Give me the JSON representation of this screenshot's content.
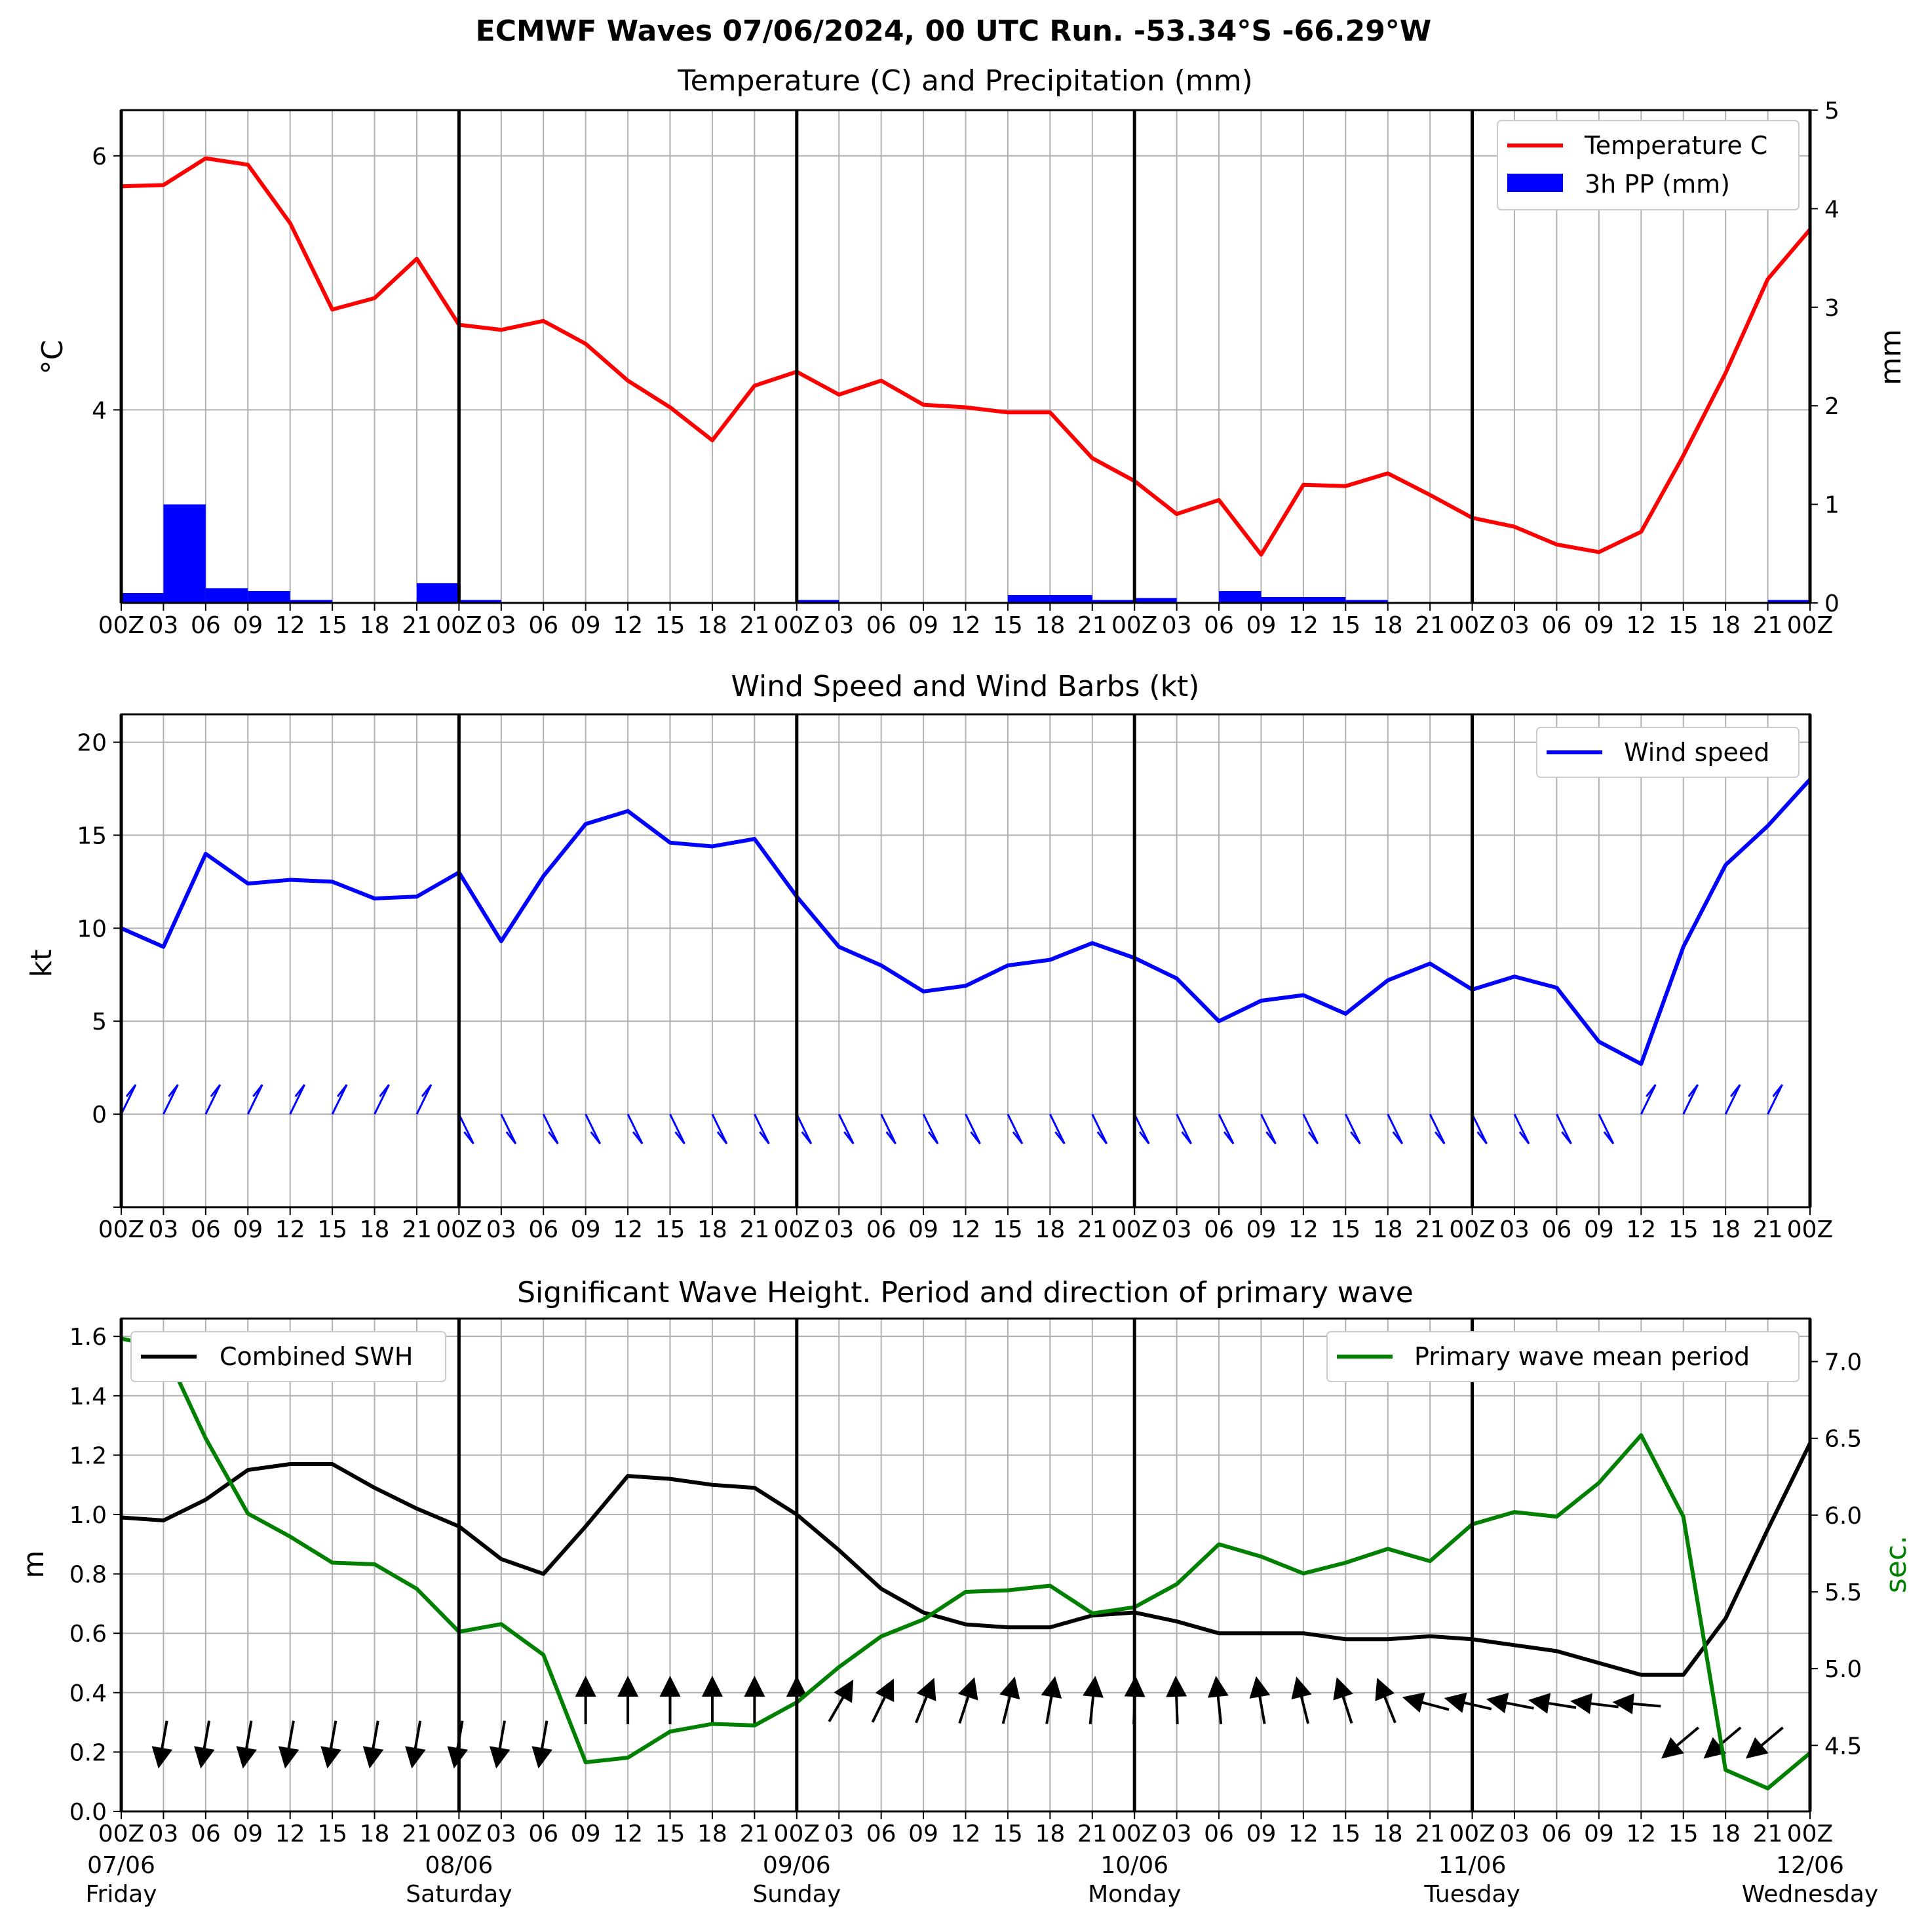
{
  "suptitle": "ECMWF Waves 07/06/2024, 00 UTC Run. -53.34°S -66.29°W",
  "hour_ticks": [
    "00Z",
    "03",
    "06",
    "09",
    "12",
    "15",
    "18",
    "21",
    "00Z",
    "03",
    "06",
    "09",
    "12",
    "15",
    "18",
    "21",
    "00Z",
    "03",
    "06",
    "09",
    "12",
    "15",
    "18",
    "21",
    "00Z",
    "03",
    "06",
    "09",
    "12",
    "15",
    "18",
    "21",
    "00Z",
    "03",
    "06",
    "09",
    "12",
    "15",
    "18",
    "21",
    "00Z"
  ],
  "day_labels": [
    {
      "date": "07/06",
      "day": "Friday"
    },
    {
      "date": "08/06",
      "day": "Saturday"
    },
    {
      "date": "09/06",
      "day": "Sunday"
    },
    {
      "date": "10/06",
      "day": "Monday"
    },
    {
      "date": "11/06",
      "day": "Tuesday"
    },
    {
      "date": "12/06",
      "day": "Wednesday"
    }
  ],
  "colors": {
    "temperature": "#ff0000",
    "precip": "#0000ff",
    "wind": "#0000ff",
    "swh": "#000000",
    "period": "#008000",
    "grid": "#b0b0b0"
  },
  "chart_data": [
    {
      "type": "line",
      "title": "Temperature (C) and Precipitation (mm)",
      "ylabel": "°C",
      "y2label": "mm",
      "ylim": [
        2.48,
        6.36
      ],
      "y2lim": [
        0,
        5
      ],
      "yticks": [
        4,
        6
      ],
      "y2ticks": [
        0,
        1,
        2,
        3,
        4,
        5
      ],
      "legend": "top-right",
      "series": [
        {
          "name": "Temperature C",
          "axis": "left",
          "values": [
            5.76,
            5.77,
            5.98,
            5.93,
            5.47,
            4.79,
            4.88,
            5.19,
            4.67,
            4.63,
            4.7,
            4.52,
            4.23,
            4.02,
            3.76,
            4.19,
            4.3,
            4.12,
            4.23,
            4.04,
            4.02,
            3.98,
            3.98,
            3.62,
            3.44,
            3.18,
            3.29,
            2.86,
            3.41,
            3.4,
            3.5,
            3.33,
            3.15,
            3.08,
            2.94,
            2.88,
            3.04,
            3.64,
            4.29,
            5.03,
            5.42
          ]
        },
        {
          "name": "3h PP (mm)",
          "axis": "right",
          "kind": "bar",
          "values": [
            0.1,
            1.0,
            0.15,
            0.12,
            0.03,
            0,
            0.01,
            0.2,
            0.03,
            0,
            0,
            0.01,
            0,
            0,
            0,
            0,
            0.03,
            0,
            0,
            0.01,
            0.01,
            0.08,
            0.08,
            0.03,
            0.05,
            0,
            0.12,
            0.06,
            0.06,
            0.03,
            0.01,
            0,
            0,
            0,
            0,
            0,
            0,
            0,
            0,
            0.03,
            0
          ]
        }
      ]
    },
    {
      "type": "line",
      "title": "Wind Speed and Wind Barbs (kt)",
      "ylabel": "kt",
      "ylim": [
        -5,
        21.5
      ],
      "yticks": [
        0,
        5,
        10,
        15,
        20
      ],
      "legend": "top-right",
      "series": [
        {
          "name": "Wind speed",
          "values": [
            10.0,
            9.0,
            14.0,
            12.4,
            12.6,
            12.5,
            11.6,
            11.7,
            13.0,
            9.3,
            12.8,
            15.6,
            16.3,
            14.6,
            14.4,
            14.8,
            11.7,
            9.0,
            8.0,
            6.6,
            6.9,
            8.0,
            8.3,
            9.2,
            8.4,
            7.3,
            5.0,
            6.1,
            6.4,
            5.4,
            7.2,
            8.1,
            6.7,
            7.4,
            6.8,
            3.9,
            2.7,
            9.0,
            13.4,
            15.5,
            18.0
          ]
        }
      ]
    },
    {
      "type": "line",
      "title": "Significant Wave Height. Period and direction of primary wave",
      "ylabel": "m",
      "y2label": "sec.",
      "ylim": [
        0,
        1.66
      ],
      "y2lim": [
        4.07,
        7.28
      ],
      "yticks": [
        0.0,
        0.2,
        0.4,
        0.6,
        0.8,
        1.0,
        1.2,
        1.4,
        1.6
      ],
      "y2ticks": [
        4.5,
        5.0,
        5.5,
        6.0,
        6.5,
        7.0
      ],
      "series": [
        {
          "name": "Combined SWH",
          "axis": "left",
          "legend": "top-left",
          "values": [
            0.99,
            0.98,
            1.05,
            1.15,
            1.17,
            1.17,
            1.09,
            1.02,
            0.96,
            0.85,
            0.8,
            0.96,
            1.13,
            1.12,
            1.1,
            1.09,
            1.0,
            0.88,
            0.75,
            0.67,
            0.63,
            0.62,
            0.62,
            0.66,
            0.67,
            0.64,
            0.6,
            0.6,
            0.6,
            0.58,
            0.58,
            0.59,
            0.58,
            0.56,
            0.54,
            0.5,
            0.46,
            0.46,
            0.65,
            0.95,
            1.24
          ]
        },
        {
          "name": "Primary wave mean period",
          "axis": "right",
          "legend": "top-right",
          "values": [
            7.15,
            7.09,
            6.5,
            6.01,
            5.86,
            5.69,
            5.68,
            5.52,
            5.24,
            5.29,
            5.09,
            4.39,
            4.42,
            4.59,
            4.64,
            4.63,
            4.78,
            5.01,
            5.21,
            5.32,
            5.5,
            5.51,
            5.54,
            5.36,
            5.4,
            5.55,
            5.81,
            5.73,
            5.62,
            5.69,
            5.78,
            5.7,
            5.94,
            6.02,
            5.99,
            6.21,
            6.52,
            5.99,
            4.34,
            4.22,
            4.45
          ]
        }
      ]
    }
  ]
}
